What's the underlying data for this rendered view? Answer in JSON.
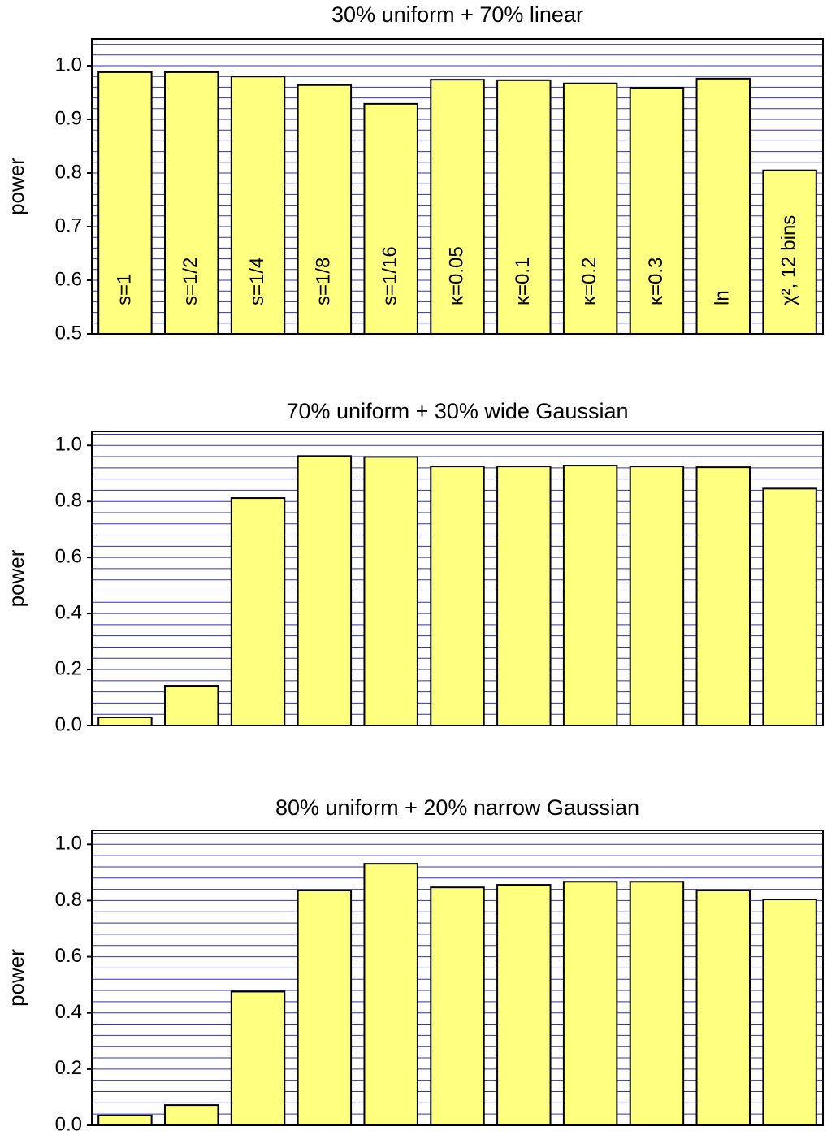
{
  "chart_data": [
    {
      "type": "bar",
      "title": "30% uniform + 70% linear",
      "ylabel": "power",
      "categories": [
        "s=1",
        "s=1/2",
        "s=1/4",
        "s=1/8",
        "s=1/16",
        "κ=0.05",
        "κ=0.1",
        "κ=0.2",
        "κ=0.3",
        "ln",
        "χ², 12 bins"
      ],
      "values": [
        0.988,
        0.988,
        0.98,
        0.964,
        0.929,
        0.974,
        0.973,
        0.967,
        0.959,
        0.976,
        0.805
      ],
      "color": "#ffff80",
      "grid_color": "#3333aa",
      "ylim": [
        0.5,
        1.05
      ],
      "yticks": [
        0.5,
        0.6,
        0.7,
        0.8,
        0.9,
        {
          "value": 1,
          "label": "1.0"
        }
      ],
      "grid_yticks": [
        0.52,
        0.54,
        0.56,
        0.58,
        0.6,
        0.62,
        0.64,
        0.66,
        0.68,
        0.7,
        0.72,
        0.74,
        0.76,
        0.78,
        0.8,
        0.82,
        0.84,
        0.86,
        0.88,
        0.9,
        0.92,
        0.94,
        0.96,
        0.98,
        1,
        1.02,
        1.04
      ],
      "grid": true
    },
    {
      "type": "bar",
      "title": "70% uniform + 30% wide Gaussian",
      "ylabel": "power",
      "categories": [
        null,
        null,
        null,
        null,
        null,
        null,
        null,
        null,
        null,
        null,
        null
      ],
      "values": [
        0.029,
        0.142,
        0.812,
        0.962,
        0.959,
        0.925,
        0.925,
        0.928,
        0.925,
        0.922,
        0.846
      ],
      "color": "#ffff80",
      "grid_color": "#3333aa",
      "ylim": [
        0,
        1.05
      ],
      "yticks": [
        {
          "value": 0,
          "label": "0.0"
        },
        0.2,
        0.4,
        0.6,
        0.8,
        {
          "value": 1,
          "label": "1.0"
        }
      ],
      "grid_yticks": [
        0.04,
        0.08,
        0.12,
        0.16,
        0.2,
        0.24,
        0.28,
        0.32,
        0.36,
        0.4,
        0.44,
        0.48,
        0.52,
        0.56,
        0.6,
        0.64,
        0.68,
        0.72,
        0.76,
        0.8,
        0.84,
        0.88,
        0.92,
        0.96,
        1,
        1.04
      ],
      "grid": true
    },
    {
      "type": "bar",
      "title": "80% uniform + 20% narrow Gaussian",
      "ylabel": "power",
      "categories": [
        null,
        null,
        null,
        null,
        null,
        null,
        null,
        null,
        null,
        null,
        null
      ],
      "values": [
        0.035,
        0.072,
        0.476,
        0.836,
        0.931,
        0.847,
        0.856,
        0.867,
        0.867,
        0.836,
        0.804
      ],
      "color": "#ffff80",
      "grid_color": "#3333aa",
      "ylim": [
        0,
        1.05
      ],
      "yticks": [
        {
          "value": 0,
          "label": "0.0"
        },
        0.2,
        0.4,
        0.6,
        0.8,
        {
          "value": 1,
          "label": "1.0"
        }
      ],
      "grid_yticks": [
        0.04,
        0.08,
        0.12,
        0.16,
        0.2,
        0.24,
        0.28,
        0.32,
        0.36,
        0.4,
        0.44,
        0.48,
        0.52,
        0.56,
        0.6,
        0.64,
        0.68,
        0.72,
        0.76,
        0.8,
        0.84,
        0.88,
        0.92,
        0.96,
        1,
        1.04
      ],
      "grid": true
    }
  ]
}
